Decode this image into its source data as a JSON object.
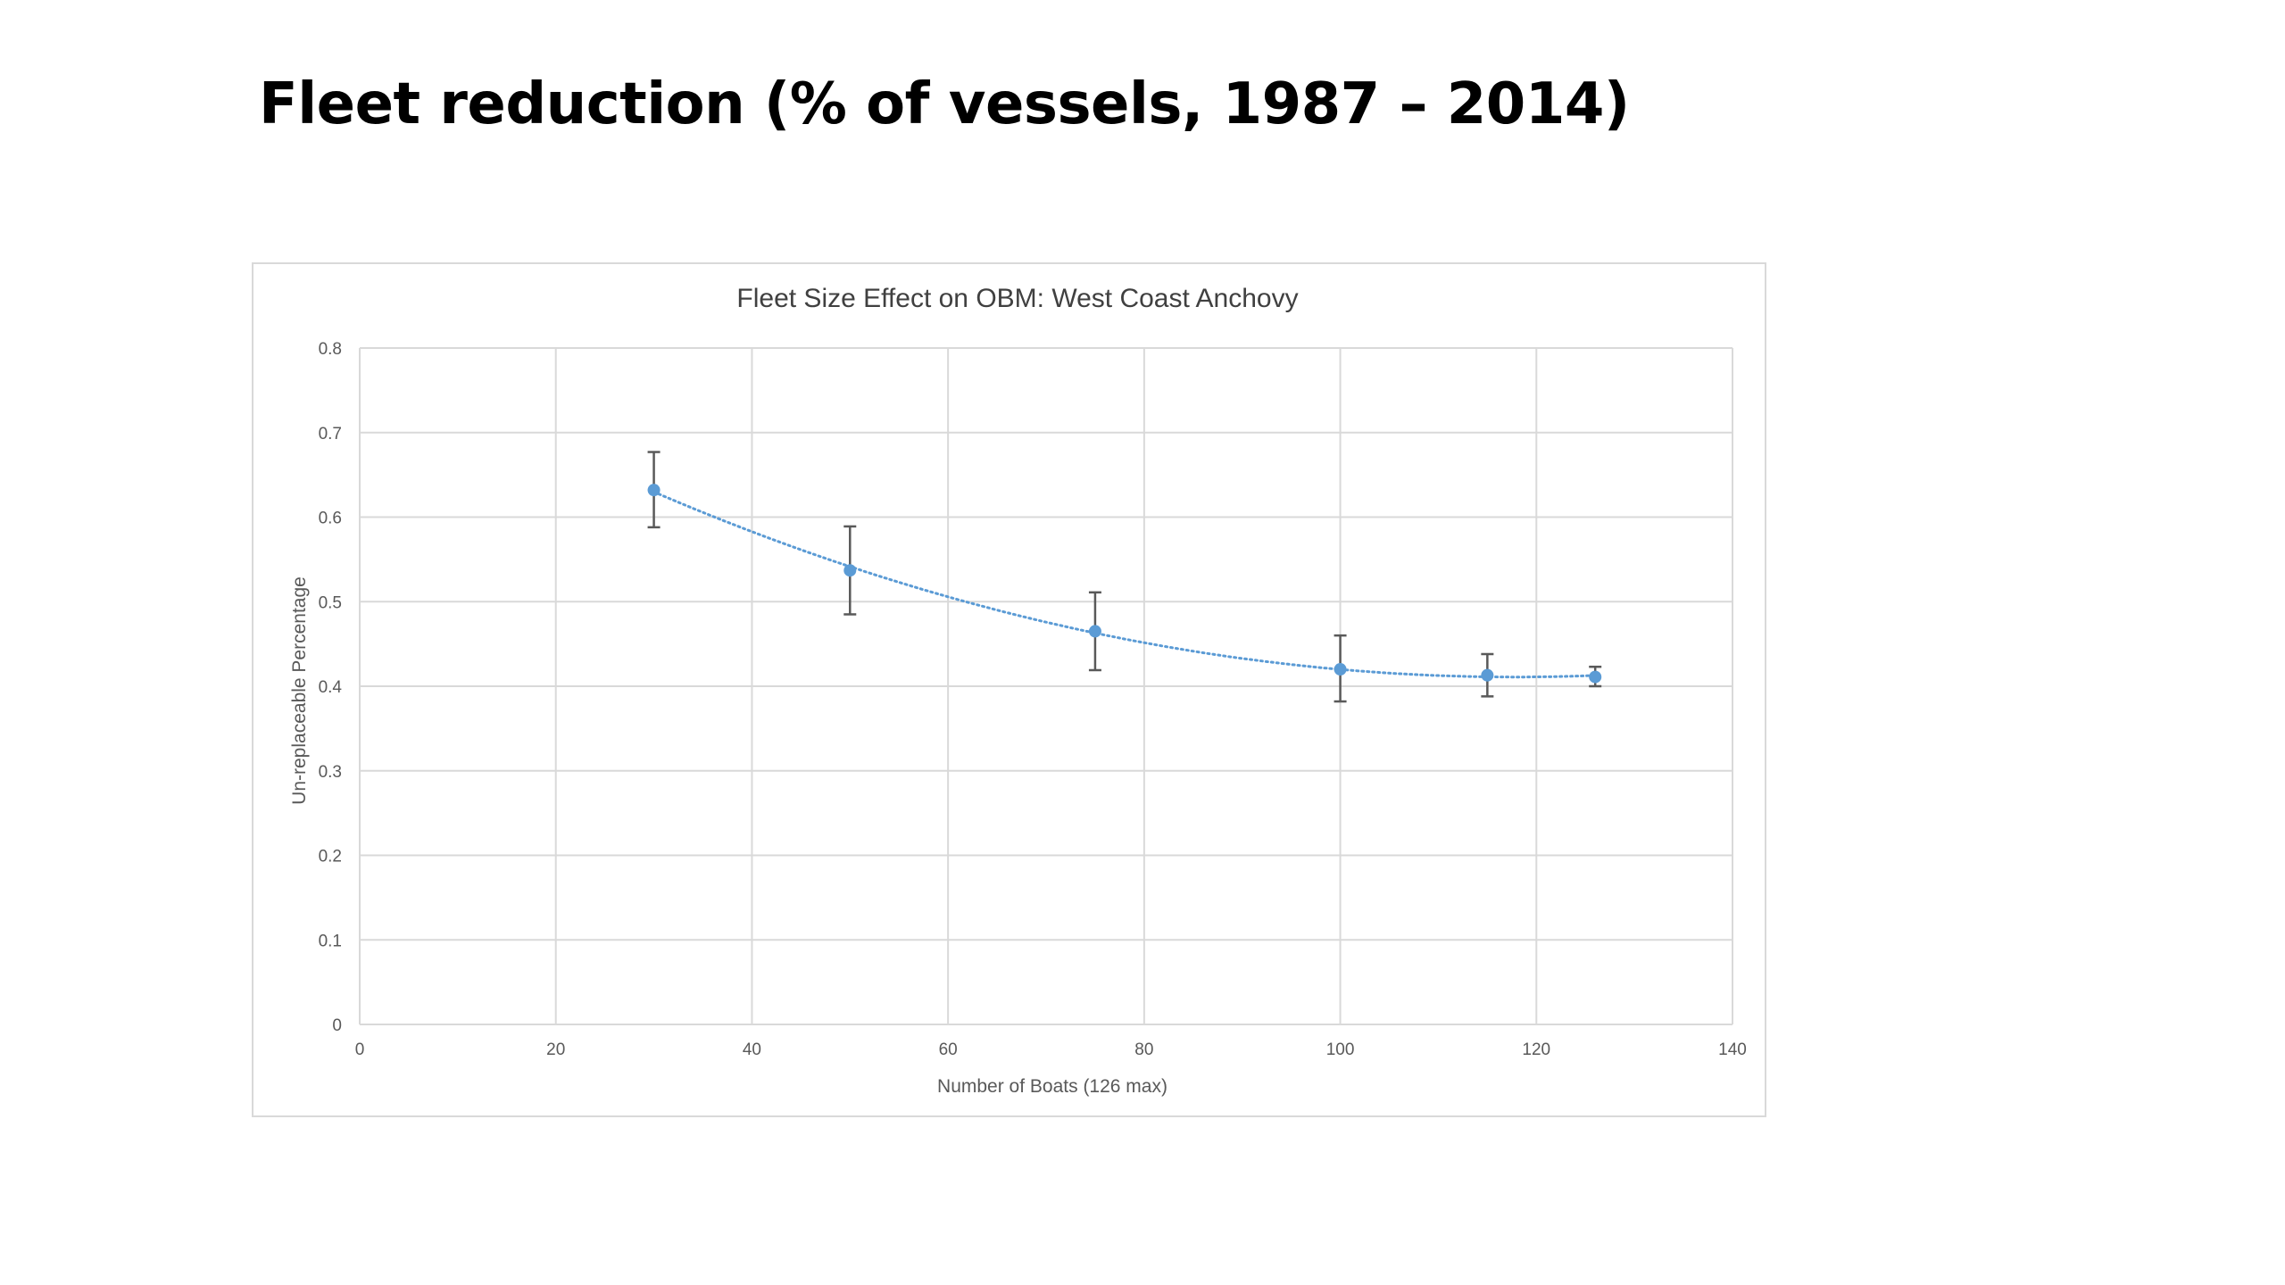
{
  "slide": {
    "title": "Fleet reduction (% of vessels, 1987 – 2014)"
  },
  "chart_data": {
    "type": "scatter",
    "title": "Fleet Size Effect on OBM: West Coast Anchovy",
    "xlabel": "Number of Boats (126 max)",
    "ylabel": "Un-replaceable Percentage",
    "xlim": [
      0,
      140
    ],
    "ylim": [
      0,
      0.8
    ],
    "xticks": [
      0,
      20,
      40,
      60,
      80,
      100,
      120,
      140
    ],
    "xtick_labels": [
      "0",
      "20",
      "40",
      "60",
      "80",
      "100",
      "120",
      "140"
    ],
    "yticks": [
      0,
      0.1,
      0.2,
      0.3,
      0.4,
      0.5,
      0.6,
      0.7,
      0.8
    ],
    "ytick_labels": [
      "0",
      "0.1",
      "0.2",
      "0.3",
      "0.4",
      "0.5",
      "0.6",
      "0.7",
      "0.8"
    ],
    "grid": true,
    "legend": "none",
    "trendline": "dotted polynomial",
    "colors": {
      "marker": "#5b9bd5",
      "trendline": "#5b9bd5",
      "error_bar": "#595959",
      "grid": "#d9d9d9"
    },
    "series": [
      {
        "x": [
          30,
          50,
          75,
          100,
          115,
          126
        ],
        "y": [
          0.632,
          0.537,
          0.465,
          0.42,
          0.413,
          0.411
        ],
        "err_high": [
          0.677,
          0.589,
          0.511,
          0.46,
          0.438,
          0.423
        ],
        "err_low": [
          0.588,
          0.485,
          0.419,
          0.382,
          0.388,
          0.4
        ]
      }
    ]
  }
}
